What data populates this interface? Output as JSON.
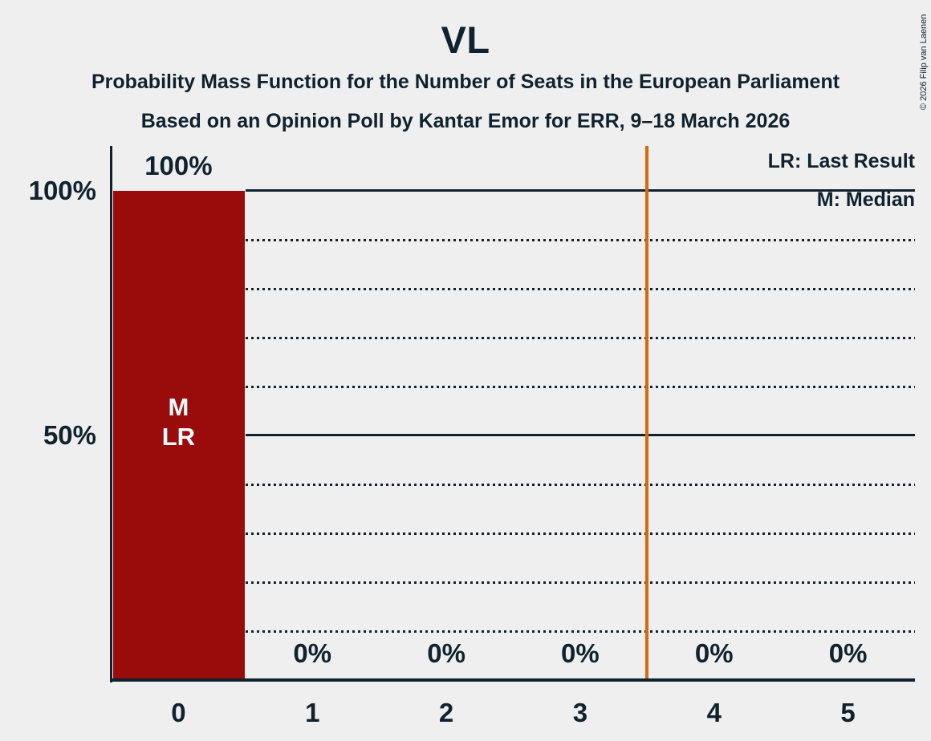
{
  "header": {
    "title": "VL",
    "subtitle1": "Probability Mass Function for the Number of Seats in the European Parliament",
    "subtitle2": "Based on an Opinion Poll by Kantar Emor for ERR, 9–18 March 2026",
    "copyright": "© 2026 Filip van Laenen"
  },
  "legend": {
    "lr": "LR: Last Result",
    "m": "M: Median"
  },
  "chart_data": {
    "type": "bar",
    "title": "VL",
    "categories": [
      "0",
      "1",
      "2",
      "3",
      "4",
      "5"
    ],
    "values": [
      100,
      0,
      0,
      0,
      0,
      0
    ],
    "bar_labels": [
      "100%",
      "0%",
      "0%",
      "0%",
      "0%",
      "0%"
    ],
    "bar_annotations": [
      {
        "bar_index": 0,
        "lines": [
          "M",
          "LR"
        ]
      }
    ],
    "median_seats": 0,
    "last_result_seats": 0,
    "majority_line_x": 3.5,
    "ylim": [
      0,
      100
    ],
    "y_ticks": [
      {
        "percent": 100,
        "label": "100%"
      },
      {
        "percent": 50,
        "label": "50%"
      }
    ],
    "gridlines": {
      "dotted_percents": [
        10,
        20,
        30,
        40,
        60,
        70,
        80,
        90
      ],
      "solid_percents": [
        50,
        100
      ]
    },
    "legend_position": "top-right",
    "colors": {
      "bar": "#9a0c0c",
      "majority_line": "#d9680d",
      "text": "#0f222e",
      "bar_text": "#ffffff",
      "background": "#efefef"
    }
  }
}
